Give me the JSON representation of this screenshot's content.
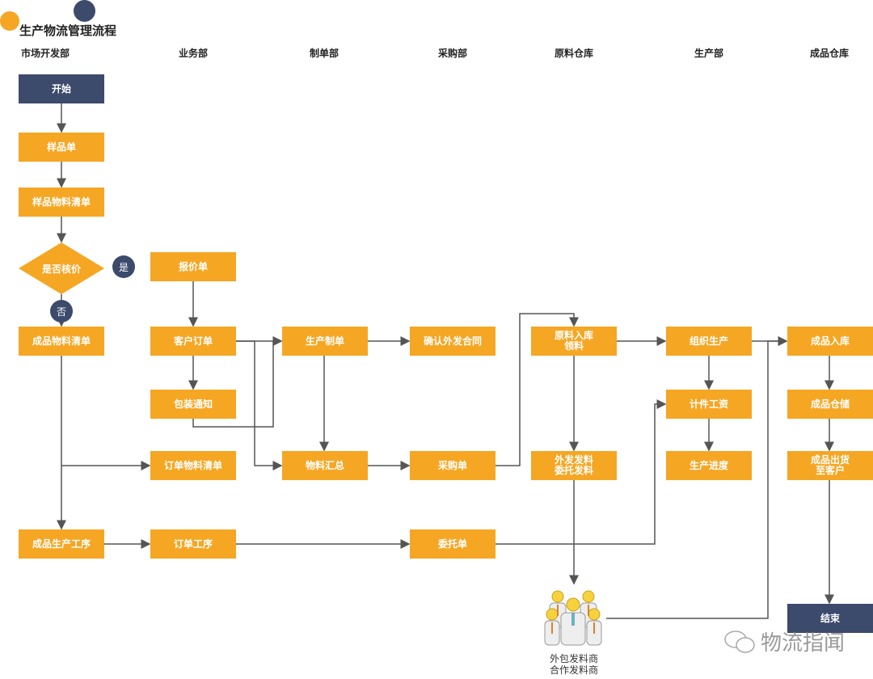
{
  "title": "生产物流管理流程",
  "colors": {
    "process": "#f5a623",
    "terminal": "#3c4a6b",
    "line": "#555555"
  },
  "columns": [
    "市场开发部",
    "业务部",
    "制单部",
    "采购部",
    "原料仓库",
    "生产部",
    "成品仓库"
  ],
  "nodes": {
    "start": "开始",
    "sample": "样品单",
    "sample_bom": "样品物料清单",
    "decision": "是否核价",
    "yes": "是",
    "no": "否",
    "product_bom": "成品物料清单",
    "product_process": "成品生产工序",
    "quote": "报价单",
    "customer_order": "客户订单",
    "packing_notice": "包装通知",
    "order_bom": "订单物料清单",
    "order_process": "订单工序",
    "production_order": "生产制单",
    "material_summary": "物料汇总",
    "confirm_contract": "确认外发合同",
    "purchase_order": "采购单",
    "entrust_order": "委托单",
    "raw_in": "原料入库\n领料",
    "outsource_issue": "外发发料\n委托发料",
    "organize_production": "组织生产",
    "piece_wage": "计件工资",
    "progress": "生产进度",
    "fg_in": "成品入库",
    "fg_storage": "成品仓储",
    "fg_ship": "成品出货\n至客户",
    "end": "结束",
    "suppliers": "外包发料商\n合作发料商"
  },
  "watermark": "物流指闻"
}
